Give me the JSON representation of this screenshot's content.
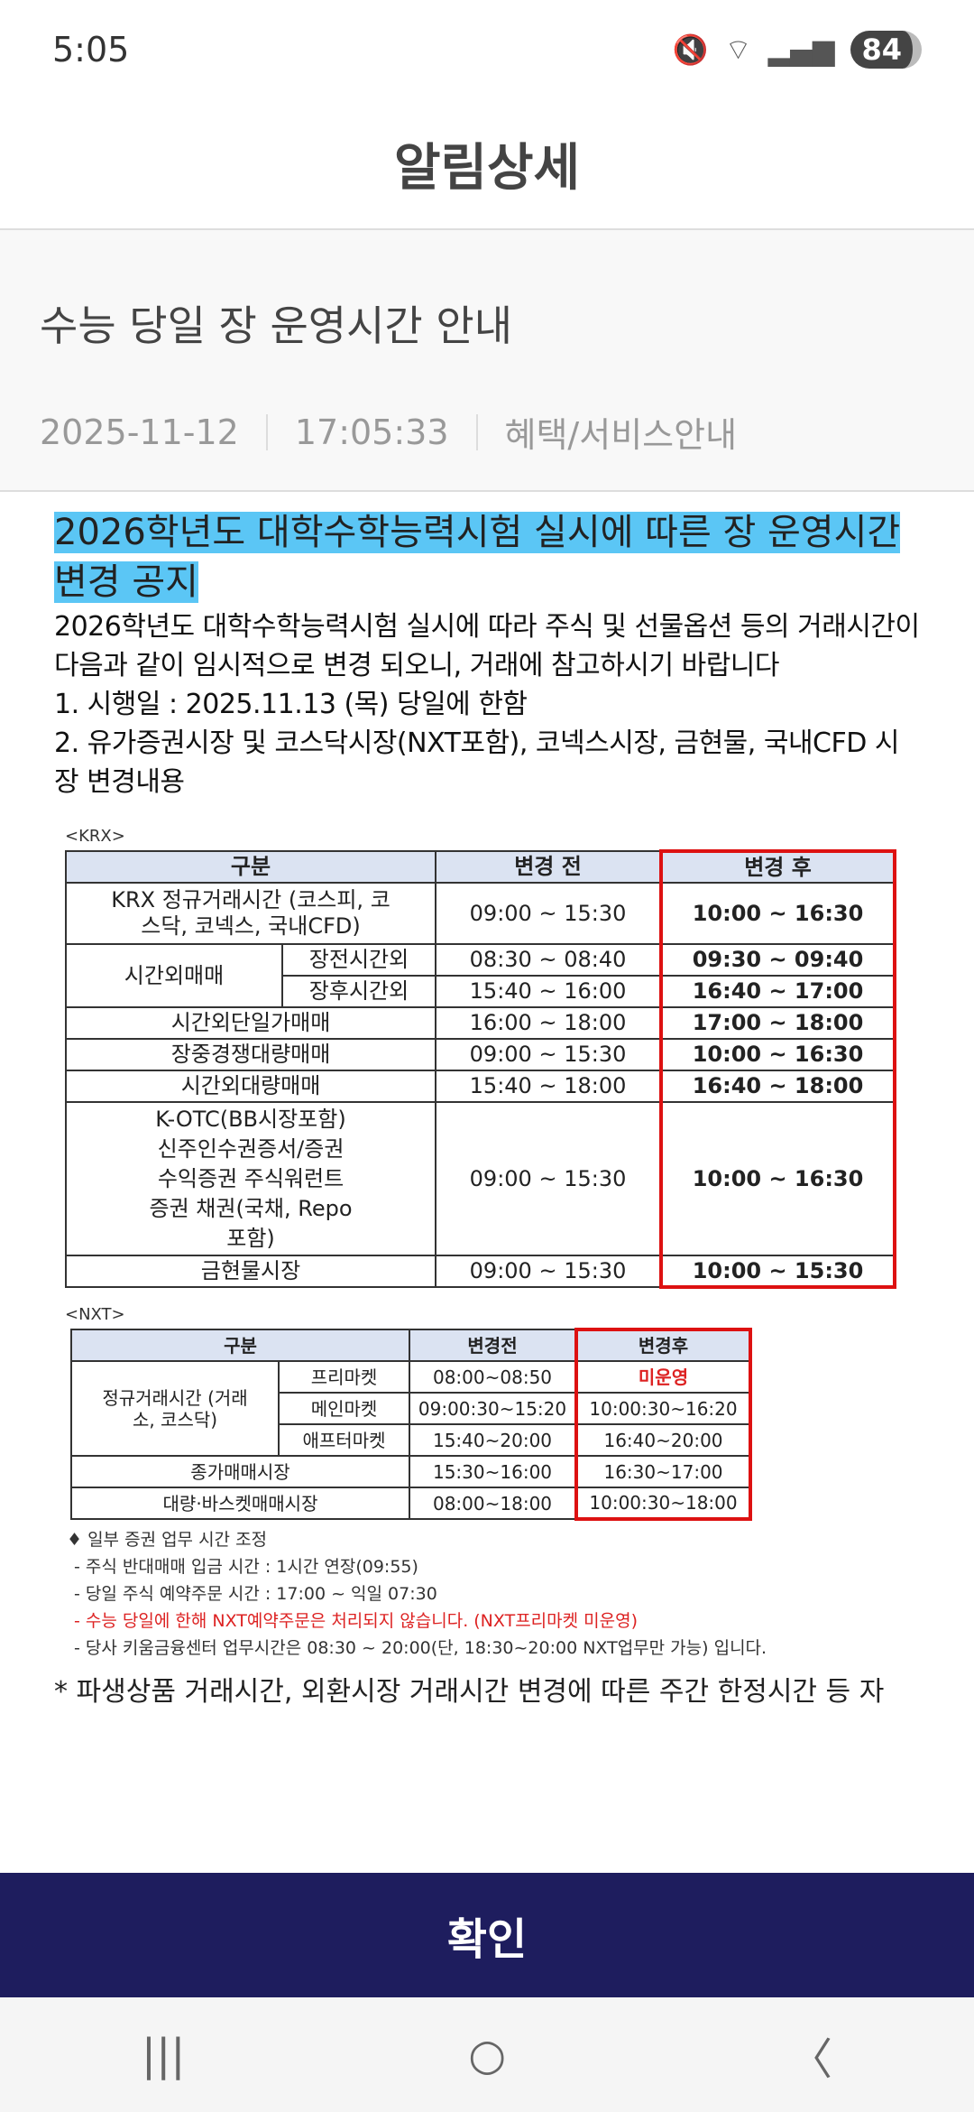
{
  "status": {
    "time": "5:05",
    "battery": "84",
    "icons": [
      "mute-vibrate-icon",
      "wifi-icon",
      "signal-icon"
    ]
  },
  "appbar": {
    "title": "알림상세"
  },
  "notice": {
    "title": "수능 당일 장 운영시간 안내",
    "date": "2025-11-12",
    "time": "17:05:33",
    "category": "혜택/서비스안내"
  },
  "body": {
    "heading": "2026학년도 대학수학능력시험 실시에 따른 장 운영시간 변경 공지",
    "lines": [
      "2026학년도 대학수학능력시험 실시에 따라 주식 및 선물옵션 등의 거래시간이 다음과 같이 임시적으로 변경 되오니, 거래에 참고하시기 바랍니다",
      "1. 시행일 : 2025.11.13 (목) 당일에 한함",
      "2. 유가증권시장 및 코스닥시장(NXT포함), 코넥스시장, 금현물, 국내CFD 시장 변경내용"
    ],
    "krx": {
      "label": "<KRX>",
      "headers": [
        "구분",
        "변경 전",
        "변경 후"
      ],
      "rows": [
        {
          "name": "KRX 정규거래시간 (코스피, 코스닥, 코넥스, 국내CFD)",
          "before": "09:00 ~ 15:30",
          "after": "10:00 ~ 16:30"
        },
        {
          "group": "시간외매매",
          "name": "장전시간외",
          "before": "08:30 ~ 08:40",
          "after": "09:30 ~ 09:40"
        },
        {
          "group": "시간외매매",
          "name": "장후시간외",
          "before": "15:40 ~ 16:00",
          "after": "16:40 ~ 17:00"
        },
        {
          "name": "시간외단일가매매",
          "before": "16:00 ~ 18:00",
          "after": "17:00 ~ 18:00"
        },
        {
          "name": "장중경쟁대량매매",
          "before": "09:00 ~ 15:30",
          "after": "10:00 ~ 16:30"
        },
        {
          "name": "시간외대량매매",
          "before": "15:40 ~ 18:00",
          "after": "16:40 ~ 18:00"
        },
        {
          "name": "K-OTC(BB시장포함) 신주인수권증서/증권 수익증권 주식워런트증권 채권(국채, Repo포함)",
          "before": "09:00 ~ 15:30",
          "after": "10:00 ~ 16:30"
        },
        {
          "name": "금현물시장",
          "before": "09:00 ~ 15:30",
          "after": "10:00 ~ 15:30"
        }
      ]
    },
    "nxt": {
      "label": "<NXT>",
      "headers": [
        "구분",
        "변경전",
        "변경후"
      ],
      "group": "정규거래시간 (거래소, 코스닥)",
      "rows": [
        {
          "name": "프리마켓",
          "before": "08:00~08:50",
          "after": "미운영"
        },
        {
          "name": "메인마켓",
          "before": "09:00:30~15:20",
          "after": "10:00:30~16:20"
        },
        {
          "name": "애프터마켓",
          "before": "15:40~20:00",
          "after": "16:40~20:00"
        },
        {
          "name": "종가매매시장",
          "before": "15:30~16:00",
          "after": "16:30~17:00"
        },
        {
          "name": "대량·바스켓매매시장",
          "before": "08:00~18:00",
          "after": "10:00:30~18:00"
        }
      ]
    },
    "notes": [
      "♦ 일부 증권 업무 시간 조정",
      "- 주식 반대매매 입금 시간 : 1시간 연장(09:55)",
      "- 당일 주식 예약주문 시간 : 17:00 ~ 익일 07:30",
      "- 수능 당일에 한해 NXT예약주문은 처리되지 않습니다. (NXT프리마켓 미운영)",
      "- 당사 키움금융센터 업무시간은 08:30 ~ 20:00(단, 18:30~20:00 NXT업무만 가능) 입니다."
    ],
    "cut_line": "* 파생상품 거래시간, 외환시장 거래시간 변경에 따른 주간 한정시간 등 자"
  },
  "confirm": "확인",
  "nav": {
    "recent": "|||",
    "home": "○",
    "back": "〈"
  }
}
